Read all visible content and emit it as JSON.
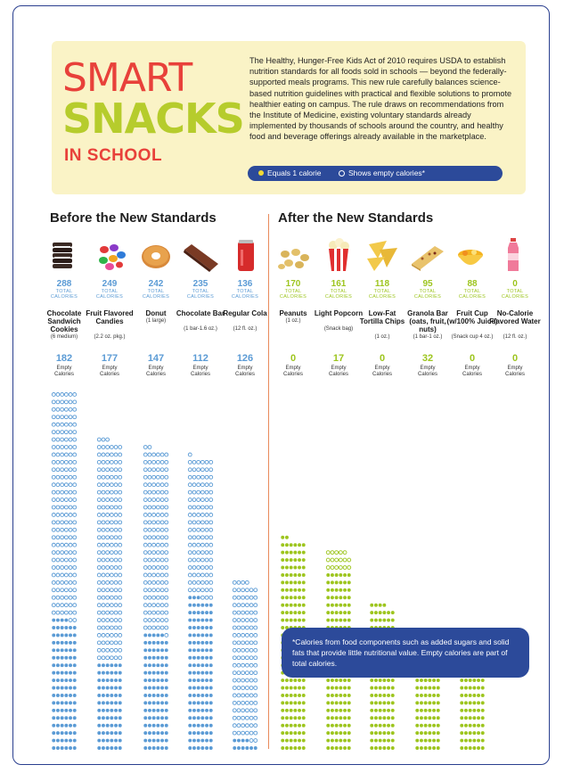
{
  "header": {
    "title_line1": "SMART",
    "title_line2": "SNACKS",
    "title_line3": "IN SCHOOL",
    "intro": "The Healthy, Hunger-Free Kids Act of 2010 requires USDA to establish nutrition standards for all foods sold in schools — beyond the federally-supported meals programs. This new rule carefully balances science-based nutrition guidelines with practical and flexible solutions to promote healthier eating on campus. The rule draws on recommendations from the Institute of Medicine, existing voluntary standards already implemented by thousands of schools around the country, and healthy food and beverage offerings already available in the marketplace.",
    "legend_equals": "Equals 1 calorie",
    "legend_empty": "Shows empty calories*"
  },
  "colors": {
    "before": "#5b9bd5",
    "after": "#9dc51e",
    "red": "#e8413a",
    "navy": "#2c4a9a"
  },
  "chart_data": {
    "type": "bar",
    "unit": "1 dot = 1 calorie",
    "groups": [
      {
        "heading": "Before the New Standards",
        "items": [
          {
            "name": "Chocolate Sandwich Cookies",
            "serving": "(6 medium)",
            "total_calories": 288,
            "empty_calories": 182,
            "icon": "cookies-icon"
          },
          {
            "name": "Fruit Flavored Candies",
            "serving": "(2.2 oz. pkg.)",
            "total_calories": 249,
            "empty_calories": 177,
            "icon": "candies-icon"
          },
          {
            "name": "Donut",
            "serving": "(1 large)",
            "total_calories": 242,
            "empty_calories": 147,
            "icon": "donut-icon"
          },
          {
            "name": "Chocolate Bar",
            "serving": "(1 bar-1.6 oz.)",
            "total_calories": 235,
            "empty_calories": 112,
            "icon": "chocolate-bar-icon"
          },
          {
            "name": "Regular Cola",
            "serving": "(12 fl. oz.)",
            "total_calories": 136,
            "empty_calories": 126,
            "icon": "cola-can-icon"
          }
        ]
      },
      {
        "heading": "After the New Standards",
        "items": [
          {
            "name": "Peanuts",
            "serving": "(1 oz.)",
            "total_calories": 170,
            "empty_calories": 0,
            "icon": "peanuts-icon"
          },
          {
            "name": "Light Popcorn",
            "serving": "(Snack bag)",
            "total_calories": 161,
            "empty_calories": 17,
            "icon": "popcorn-icon"
          },
          {
            "name": "Low-Fat Tortilla Chips",
            "serving": "(1 oz.)",
            "total_calories": 118,
            "empty_calories": 0,
            "icon": "tortilla-chips-icon"
          },
          {
            "name": "Granola Bar (oats, fruit, nuts)",
            "serving": "(1 bar-1 oz.)",
            "total_calories": 95,
            "empty_calories": 32,
            "icon": "granola-bar-icon"
          },
          {
            "name": "Fruit Cup (w/100% Juice)",
            "serving": "(Snack cup 4 oz.)",
            "total_calories": 88,
            "empty_calories": 0,
            "icon": "fruit-cup-icon"
          },
          {
            "name": "No-Calorie Flavored Water",
            "serving": "(12 fl. oz.)",
            "total_calories": 0,
            "empty_calories": 0,
            "icon": "water-bottle-icon"
          }
        ]
      }
    ],
    "total_label_line1": "TOTAL",
    "total_label_line2": "CALORIES",
    "empty_label_line1": "Empty",
    "empty_label_line2": "Calories"
  },
  "footnote": "*Calories from food components such as added sugars and solid fats that provide little nutritional value. Empty calories are part of total calories."
}
